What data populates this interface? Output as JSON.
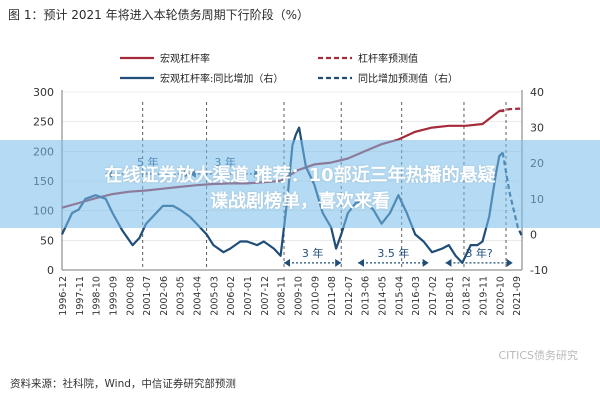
{
  "page": {
    "title": "图 1：预计 2021 年将进入本轮债务周期下行阶段（%）",
    "source": "资料来源：社科院，Wind，中信证券研究部预测",
    "watermark": "CITICS债务研究",
    "overlay_text_line1": "在线证券放大渠道 推荐：10部近三年热播的悬疑",
    "overlay_text_line2": "谍战剧榜单，喜欢来看"
  },
  "colors": {
    "leverage": "#a52a3a",
    "yoy": "#1f4e79",
    "period_arrow": "#1f4e79",
    "grid": "#dddddd",
    "axis": "#555555",
    "overlay": "#78bee8"
  },
  "chart_data": {
    "type": "line",
    "title": "",
    "x_ticks": [
      "1996-12",
      "1997-11",
      "1998-10",
      "1999-09",
      "2000-08",
      "2001-07",
      "2002-06",
      "2003-05",
      "2004-04",
      "2005-03",
      "2006-02",
      "2007-01",
      "2007-12",
      "2008-11",
      "2009-10",
      "2010-09",
      "2011-08",
      "2012-07",
      "2013-06",
      "2014-05",
      "2015-04",
      "2016-03",
      "2017-02",
      "2018-01",
      "2018-12",
      "2019-11",
      "2020-10",
      "2021-09"
    ],
    "y_left": {
      "min": 0,
      "max": 300,
      "ticks": [
        0,
        50,
        100,
        150,
        200,
        250,
        300
      ]
    },
    "y_right": {
      "min": -10,
      "max": 40,
      "ticks": [
        -10,
        0,
        10,
        20,
        30,
        40
      ]
    },
    "legend": [
      {
        "key": "leverage",
        "label": "宏观杠杆率",
        "style": "solid"
      },
      {
        "key": "leverage_forecast",
        "label": "杠杆率预测值",
        "style": "dashed"
      },
      {
        "key": "yoy",
        "label": "宏观杠杆率:同比增加（右）",
        "style": "solid"
      },
      {
        "key": "yoy_forecast",
        "label": "同比增加预测值（右）",
        "style": "dashed"
      }
    ],
    "series": [
      {
        "name": "宏观杠杆率",
        "axis": "left",
        "style": "solid",
        "color_key": "leverage",
        "points": [
          [
            0,
            105
          ],
          [
            1,
            113
          ],
          [
            2,
            121
          ],
          [
            3,
            128
          ],
          [
            4,
            132
          ],
          [
            5,
            134
          ],
          [
            6,
            137
          ],
          [
            7,
            140
          ],
          [
            8,
            143
          ],
          [
            9,
            145
          ],
          [
            10,
            146
          ],
          [
            11,
            146
          ],
          [
            12,
            148
          ],
          [
            13,
            150
          ],
          [
            14,
            168
          ],
          [
            15,
            178
          ],
          [
            16,
            181
          ],
          [
            17,
            188
          ],
          [
            18,
            200
          ],
          [
            19,
            212
          ],
          [
            20,
            220
          ],
          [
            21,
            233
          ],
          [
            22,
            240
          ],
          [
            23,
            243
          ],
          [
            24,
            243
          ],
          [
            25,
            246
          ],
          [
            26,
            268
          ],
          [
            26.3,
            268
          ]
        ]
      },
      {
        "name": "杠杆率预测值",
        "axis": "left",
        "style": "dashed",
        "color_key": "leverage",
        "points": [
          [
            26,
            268
          ],
          [
            26.6,
            271
          ],
          [
            27.3,
            272
          ]
        ]
      },
      {
        "name": "宏观杠杆率:同比增加",
        "axis": "right",
        "style": "solid",
        "color_key": "yoy",
        "points": [
          [
            0,
            0
          ],
          [
            0.6,
            6
          ],
          [
            1,
            7
          ],
          [
            1.4,
            10
          ],
          [
            2,
            11
          ],
          [
            2.6,
            10
          ],
          [
            3,
            6
          ],
          [
            3.6,
            1
          ],
          [
            4.2,
            -3
          ],
          [
            4.6,
            -1
          ],
          [
            5,
            3
          ],
          [
            5.6,
            6
          ],
          [
            6,
            8
          ],
          [
            6.6,
            8
          ],
          [
            7,
            7
          ],
          [
            7.6,
            5
          ],
          [
            8,
            3
          ],
          [
            8.6,
            0
          ],
          [
            9,
            -3
          ],
          [
            9.6,
            -5
          ],
          [
            10,
            -4
          ],
          [
            10.6,
            -2
          ],
          [
            11,
            -2
          ],
          [
            11.6,
            -3
          ],
          [
            12,
            -2
          ],
          [
            12.6,
            -4
          ],
          [
            13,
            -6
          ],
          [
            13.4,
            10
          ],
          [
            13.7,
            25
          ],
          [
            13.9,
            28
          ],
          [
            14.1,
            30
          ],
          [
            14.5,
            19
          ],
          [
            15,
            14
          ],
          [
            15.5,
            6
          ],
          [
            16,
            2
          ],
          [
            16.3,
            -4
          ],
          [
            16.6,
            0
          ],
          [
            17,
            6
          ],
          [
            17.5,
            9
          ],
          [
            18,
            9
          ],
          [
            18.5,
            7
          ],
          [
            19,
            3
          ],
          [
            19.5,
            6
          ],
          [
            20,
            11
          ],
          [
            20.5,
            6
          ],
          [
            21,
            0
          ],
          [
            21.5,
            -2
          ],
          [
            22,
            -5
          ],
          [
            22.6,
            -4
          ],
          [
            23,
            -3
          ],
          [
            23.4,
            -6
          ],
          [
            23.8,
            -8
          ],
          [
            24.3,
            -3
          ],
          [
            24.7,
            -3
          ],
          [
            25,
            -2
          ],
          [
            25.4,
            5
          ],
          [
            25.8,
            17
          ],
          [
            26,
            22
          ],
          [
            26.2,
            23
          ]
        ]
      },
      {
        "name": "同比增加预测值",
        "axis": "right",
        "style": "dashed",
        "color_key": "yoy",
        "points": [
          [
            26.2,
            23
          ],
          [
            26.6,
            12
          ],
          [
            27.1,
            2
          ],
          [
            27.4,
            -1
          ]
        ]
      }
    ],
    "period_annotations": [
      {
        "label": "5 年",
        "x_start": 2.6,
        "x_end": 7.6,
        "axis": "right",
        "level": 17
      },
      {
        "label": "3 年",
        "x_start": 7.6,
        "x_end": 11.8,
        "axis": "right",
        "level": 17
      },
      {
        "label": "3 年",
        "x_start": 13.2,
        "x_end": 16.6,
        "axis": "right",
        "level": -8
      },
      {
        "label": "3.5 年",
        "x_start": 17.6,
        "x_end": 21.8,
        "axis": "right",
        "level": -8
      },
      {
        "label": "3 年?",
        "x_start": 22.8,
        "x_end": 26.8,
        "axis": "right",
        "level": -8
      }
    ],
    "period_dividers": [
      4.8,
      8.6,
      13.2,
      16.6,
      20.2,
      23.9,
      26.4
    ]
  }
}
